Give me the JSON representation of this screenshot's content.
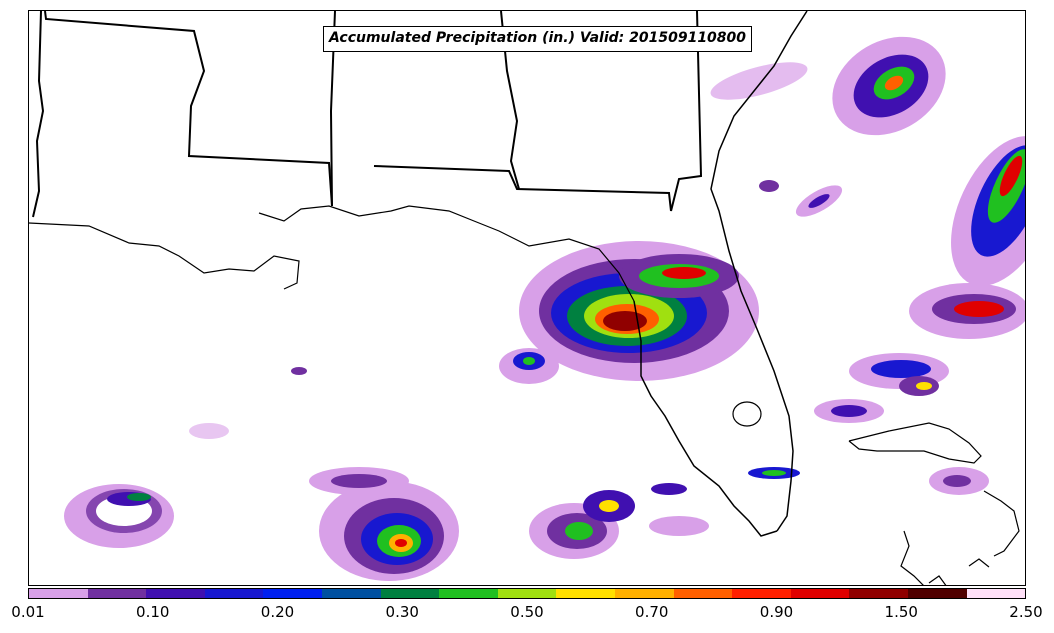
{
  "title": "Accumulated Precipitation (in.) Valid: 201509110800",
  "colorbar": {
    "colors": [
      "#d8a0e8",
      "#7030a0",
      "#4010b0",
      "#1818d0",
      "#0020f0",
      "#0050a0",
      "#008040",
      "#20c020",
      "#a0e010",
      "#ffe000",
      "#ffb000",
      "#ff6000",
      "#ff2000",
      "#e00000",
      "#900000",
      "#500000",
      "#ffe0f8"
    ],
    "tick_labels": [
      "0.01",
      "0.10",
      "0.20",
      "0.30",
      "0.50",
      "0.70",
      "0.90",
      "1.50",
      "2.50"
    ]
  },
  "map": {
    "features": [
      "state-boundaries",
      "coastline",
      "precipitation-field"
    ]
  }
}
